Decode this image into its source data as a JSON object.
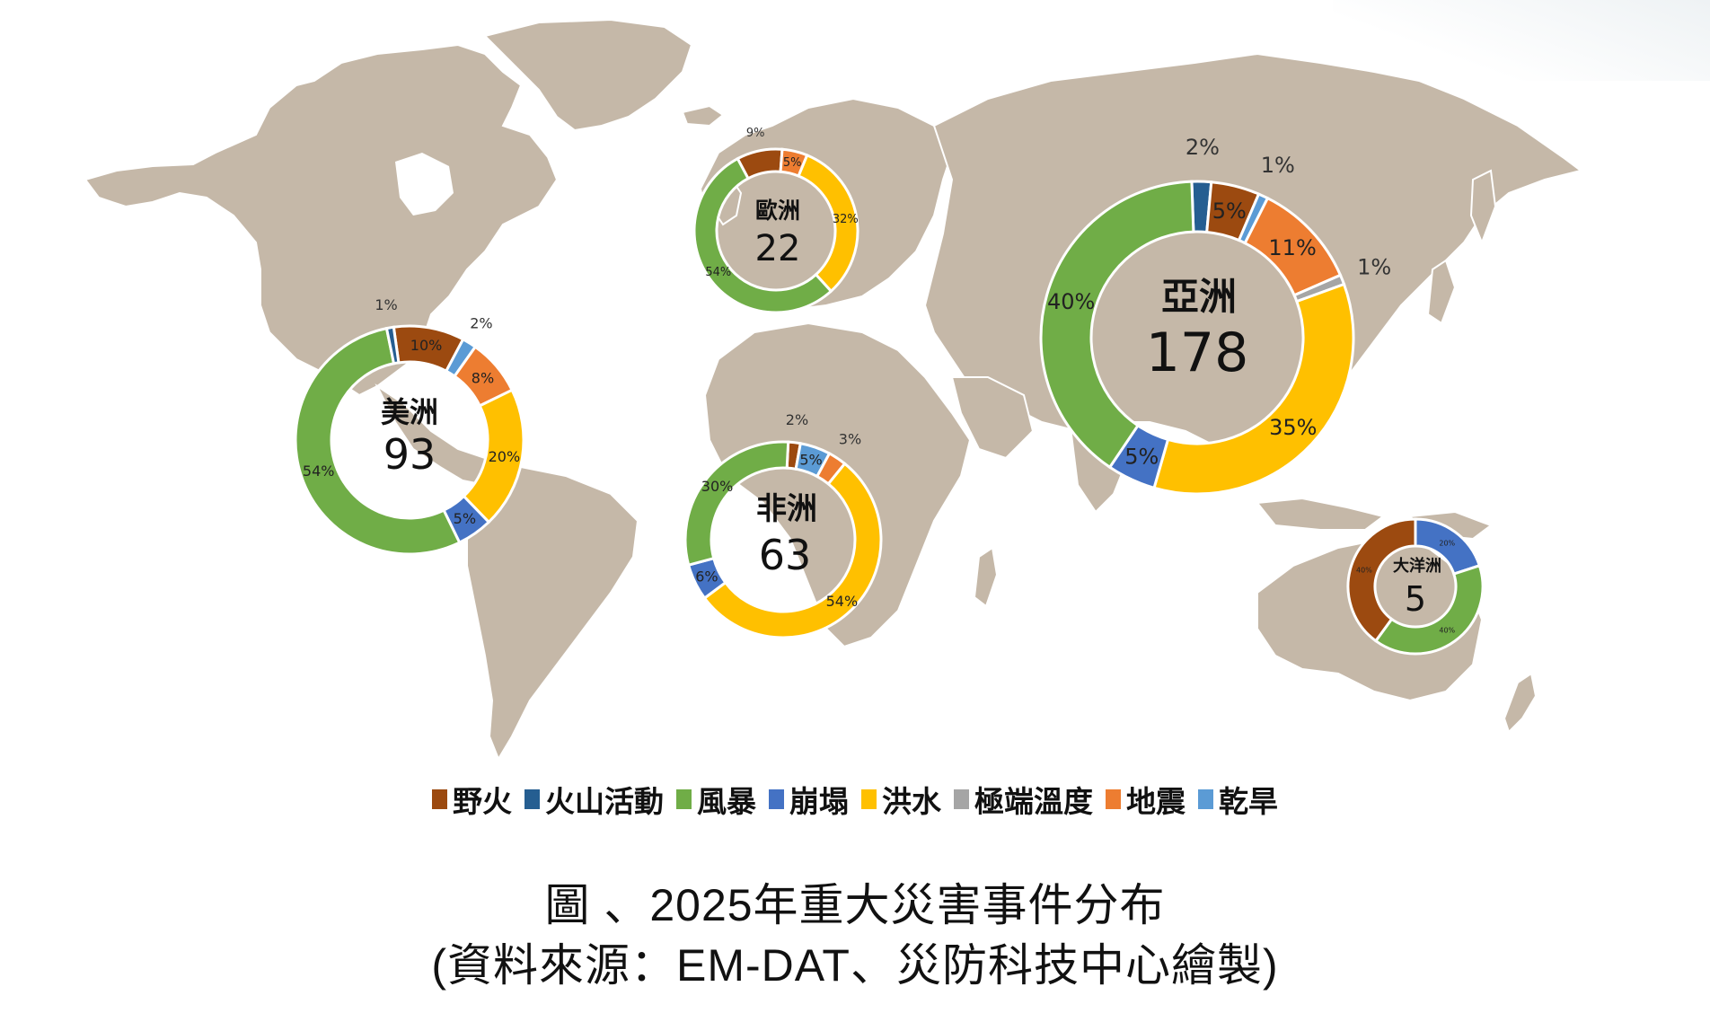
{
  "chart_data": {
    "type": "pie",
    "subtype": "donut-on-map",
    "title": "圖 、2025年重大災害事件分布",
    "subtitle": "(資料來源：EM-DAT、災防科技中心繪製)",
    "legend_position": "bottom",
    "categories": [
      "野火",
      "火山活動",
      "風暴",
      "崩塌",
      "洪水",
      "極端溫度",
      "地震",
      "乾旱"
    ],
    "category_colors": {
      "野火": "#9c4a10",
      "火山活動": "#255e91",
      "風暴": "#70ad47",
      "崩塌": "#4472c4",
      "洪水": "#ffc000",
      "極端溫度": "#a5a5a5",
      "地震": "#ed7d31",
      "乾旱": "#5b9bd5"
    },
    "series": [
      {
        "name": "美洲",
        "total": 93,
        "slices": [
          {
            "category": "野火",
            "value": 10
          },
          {
            "category": "乾旱",
            "value": 2
          },
          {
            "category": "地震",
            "value": 8
          },
          {
            "category": "洪水",
            "value": 20
          },
          {
            "category": "崩塌",
            "value": 5
          },
          {
            "category": "風暴",
            "value": 54
          },
          {
            "category": "火山活動",
            "value": 1
          }
        ]
      },
      {
        "name": "歐洲",
        "total": 22,
        "slices": [
          {
            "category": "野火",
            "value": 9
          },
          {
            "category": "地震",
            "value": 5
          },
          {
            "category": "洪水",
            "value": 32
          },
          {
            "category": "風暴",
            "value": 54
          }
        ]
      },
      {
        "name": "非洲",
        "total": 63,
        "slices": [
          {
            "category": "野火",
            "value": 2
          },
          {
            "category": "乾旱",
            "value": 5
          },
          {
            "category": "地震",
            "value": 3
          },
          {
            "category": "洪水",
            "value": 54
          },
          {
            "category": "崩塌",
            "value": 6
          },
          {
            "category": "風暴",
            "value": 30
          }
        ]
      },
      {
        "name": "亞洲",
        "total": 178,
        "slices": [
          {
            "category": "火山活動",
            "value": 2
          },
          {
            "category": "野火",
            "value": 5
          },
          {
            "category": "乾旱",
            "value": 1
          },
          {
            "category": "地震",
            "value": 11
          },
          {
            "category": "極端溫度",
            "value": 1
          },
          {
            "category": "洪水",
            "value": 35
          },
          {
            "category": "崩塌",
            "value": 5
          },
          {
            "category": "風暴",
            "value": 40
          }
        ]
      },
      {
        "name": "大洋洲",
        "total": 5,
        "slices": [
          {
            "category": "崩塌",
            "value": 20
          },
          {
            "category": "風暴",
            "value": 40
          },
          {
            "category": "野火",
            "value": 40
          }
        ]
      }
    ]
  },
  "legend": {
    "items": [
      {
        "label": "野火",
        "color": "#9c4a10"
      },
      {
        "label": "火山活動",
        "color": "#255e91"
      },
      {
        "label": "風暴",
        "color": "#70ad47"
      },
      {
        "label": "崩塌",
        "color": "#4472c4"
      },
      {
        "label": "洪水",
        "color": "#ffc000"
      },
      {
        "label": "極端溫度",
        "color": "#a5a5a5"
      },
      {
        "label": "地震",
        "color": "#ed7d31"
      },
      {
        "label": "乾旱",
        "color": "#5b9bd5"
      }
    ]
  },
  "donuts": {
    "americas": {
      "name": "美洲",
      "total": "93"
    },
    "europe": {
      "name": "歐洲",
      "total": "22"
    },
    "africa": {
      "name": "非洲",
      "total": "63"
    },
    "asia": {
      "name": "亞洲",
      "total": "178"
    },
    "oceania": {
      "name": "大洋洲",
      "total": "5"
    }
  },
  "caption": {
    "line1": "圖 、2025年重大災害事件分布",
    "line2": "(資料來源：EM-DAT、災防科技中心繪製)"
  },
  "colors": {
    "land": "#c5b8a8",
    "border": "#ffffff",
    "background": "#ffffff"
  }
}
